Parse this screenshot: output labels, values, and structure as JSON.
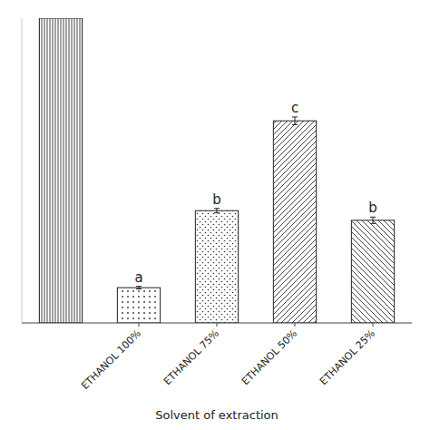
{
  "chart_data": {
    "type": "bar",
    "categories": [
      null,
      "ETHANOL 100%",
      "ETHANOL 75%",
      "ETHANOL 50%",
      "ETHANOL 25%"
    ],
    "values": [
      9.5,
      1.1,
      3.5,
      6.3,
      3.2
    ],
    "errors": [
      0.0,
      0.04,
      0.07,
      0.12,
      0.1
    ],
    "sig_labels": [
      null,
      "a",
      "b",
      "c",
      "b"
    ],
    "x_label": "Solvent of extraction",
    "color": "#ffffff",
    "ylim": [
      0,
      9.5
    ],
    "grid": false,
    "tick_labels": "x"
  }
}
